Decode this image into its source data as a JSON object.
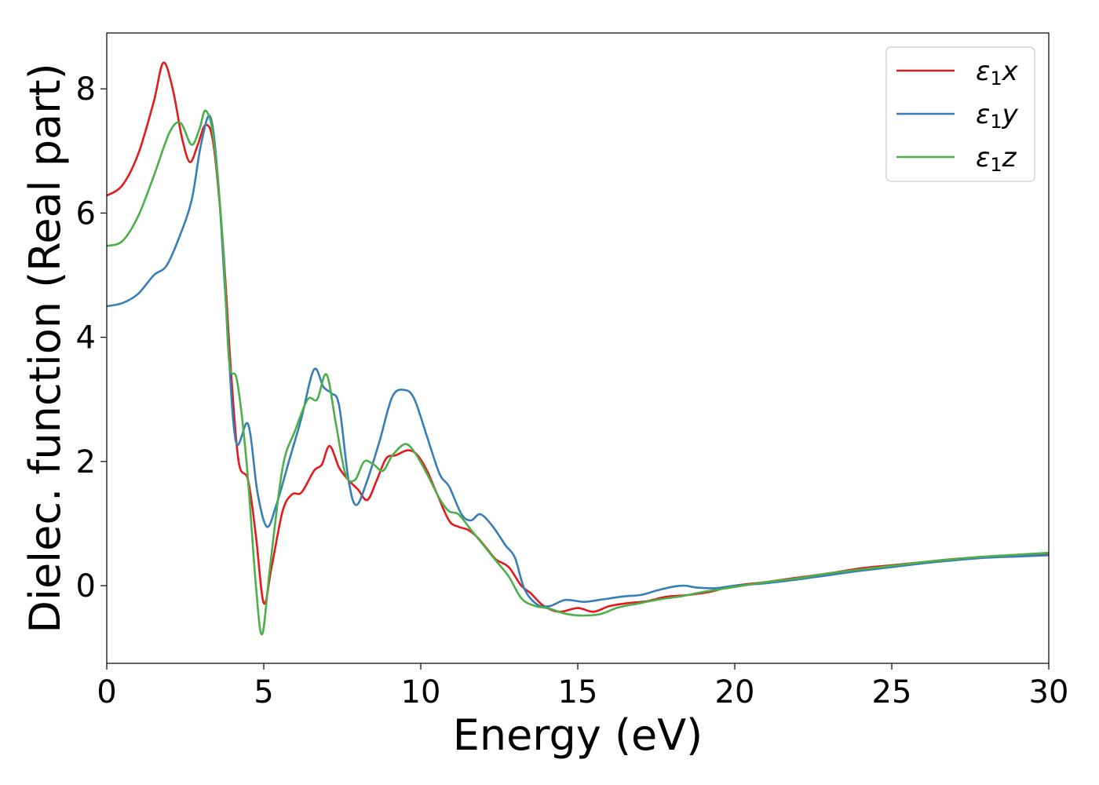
{
  "chart_data": {
    "type": "line",
    "title": "",
    "xlabel": "Energy (eV)",
    "ylabel": "Dielec. function (Real part)",
    "xlim": [
      0,
      30
    ],
    "ylim": [
      -1.25,
      8.9
    ],
    "xticks": [
      0,
      5,
      10,
      15,
      20,
      25,
      30
    ],
    "yticks": [
      0,
      2,
      4,
      6,
      8
    ],
    "grid": false,
    "legend_position": "top-right",
    "series": [
      {
        "name": "ε1x",
        "symbol": "ε",
        "sub": "1",
        "var": "x",
        "color": "#e41a1c",
        "points": [
          [
            0,
            6.28
          ],
          [
            0.5,
            6.45
          ],
          [
            1.0,
            6.95
          ],
          [
            1.5,
            7.8
          ],
          [
            1.8,
            8.42
          ],
          [
            2.1,
            8.0
          ],
          [
            2.4,
            7.2
          ],
          [
            2.65,
            6.82
          ],
          [
            2.9,
            7.1
          ],
          [
            3.15,
            7.42
          ],
          [
            3.4,
            7.1
          ],
          [
            3.7,
            5.5
          ],
          [
            3.95,
            3.5
          ],
          [
            4.2,
            2.0
          ],
          [
            4.5,
            1.7
          ],
          [
            4.75,
            0.8
          ],
          [
            5.0,
            -0.28
          ],
          [
            5.25,
            0.3
          ],
          [
            5.6,
            1.2
          ],
          [
            5.9,
            1.47
          ],
          [
            6.2,
            1.5
          ],
          [
            6.6,
            1.85
          ],
          [
            6.85,
            1.95
          ],
          [
            7.1,
            2.25
          ],
          [
            7.4,
            1.9
          ],
          [
            7.7,
            1.7
          ],
          [
            8.0,
            1.55
          ],
          [
            8.3,
            1.38
          ],
          [
            8.6,
            1.7
          ],
          [
            8.9,
            2.05
          ],
          [
            9.2,
            2.1
          ],
          [
            9.6,
            2.18
          ],
          [
            9.9,
            2.1
          ],
          [
            10.2,
            1.85
          ],
          [
            10.5,
            1.5
          ],
          [
            10.9,
            1.05
          ],
          [
            11.2,
            0.95
          ],
          [
            11.5,
            0.9
          ],
          [
            11.8,
            0.78
          ],
          [
            12.1,
            0.6
          ],
          [
            12.4,
            0.42
          ],
          [
            12.8,
            0.3
          ],
          [
            13.2,
            0.0
          ],
          [
            13.5,
            -0.12
          ],
          [
            13.9,
            -0.32
          ],
          [
            14.4,
            -0.42
          ],
          [
            15.0,
            -0.36
          ],
          [
            15.5,
            -0.42
          ],
          [
            16.0,
            -0.33
          ],
          [
            16.6,
            -0.28
          ],
          [
            17.2,
            -0.25
          ],
          [
            17.8,
            -0.18
          ],
          [
            18.5,
            -0.15
          ],
          [
            19.2,
            -0.1
          ],
          [
            20.0,
            0.0
          ],
          [
            21.0,
            0.06
          ],
          [
            22.0,
            0.13
          ],
          [
            23.0,
            0.2
          ],
          [
            24.0,
            0.28
          ],
          [
            25.0,
            0.33
          ],
          [
            26.0,
            0.38
          ],
          [
            27.0,
            0.43
          ],
          [
            28.0,
            0.46
          ],
          [
            29.0,
            0.49
          ],
          [
            30.0,
            0.51
          ]
        ]
      },
      {
        "name": "ε1y",
        "symbol": "ε",
        "sub": "1",
        "var": "y",
        "color": "#377eb8",
        "points": [
          [
            0,
            4.5
          ],
          [
            0.5,
            4.55
          ],
          [
            1.0,
            4.7
          ],
          [
            1.5,
            5.0
          ],
          [
            1.9,
            5.15
          ],
          [
            2.3,
            5.6
          ],
          [
            2.7,
            6.2
          ],
          [
            3.0,
            7.1
          ],
          [
            3.3,
            7.55
          ],
          [
            3.55,
            6.5
          ],
          [
            3.8,
            4.5
          ],
          [
            4.1,
            2.35
          ],
          [
            4.5,
            2.6
          ],
          [
            4.8,
            1.5
          ],
          [
            5.1,
            0.95
          ],
          [
            5.4,
            1.3
          ],
          [
            5.8,
            2.0
          ],
          [
            6.2,
            2.7
          ],
          [
            6.6,
            3.48
          ],
          [
            6.9,
            3.2
          ],
          [
            7.15,
            3.1
          ],
          [
            7.4,
            2.9
          ],
          [
            7.7,
            1.7
          ],
          [
            7.95,
            1.3
          ],
          [
            8.3,
            1.7
          ],
          [
            8.7,
            2.35
          ],
          [
            9.1,
            3.05
          ],
          [
            9.5,
            3.15
          ],
          [
            9.8,
            3.0
          ],
          [
            10.2,
            2.4
          ],
          [
            10.6,
            1.8
          ],
          [
            10.9,
            1.6
          ],
          [
            11.3,
            1.15
          ],
          [
            11.6,
            1.05
          ],
          [
            11.9,
            1.15
          ],
          [
            12.3,
            0.95
          ],
          [
            12.7,
            0.65
          ],
          [
            13.0,
            0.45
          ],
          [
            13.3,
            -0.05
          ],
          [
            13.7,
            -0.3
          ],
          [
            14.1,
            -0.33
          ],
          [
            14.6,
            -0.23
          ],
          [
            15.2,
            -0.26
          ],
          [
            15.8,
            -0.22
          ],
          [
            16.5,
            -0.17
          ],
          [
            17.0,
            -0.15
          ],
          [
            17.5,
            -0.08
          ],
          [
            18.0,
            -0.02
          ],
          [
            18.4,
            0.0
          ],
          [
            18.8,
            -0.03
          ],
          [
            19.4,
            -0.04
          ],
          [
            20.0,
            0.0
          ],
          [
            21.0,
            0.04
          ],
          [
            22.0,
            0.1
          ],
          [
            23.0,
            0.17
          ],
          [
            24.0,
            0.24
          ],
          [
            25.0,
            0.3
          ],
          [
            26.0,
            0.36
          ],
          [
            27.0,
            0.41
          ],
          [
            28.0,
            0.45
          ],
          [
            29.0,
            0.47
          ],
          [
            30.0,
            0.49
          ]
        ]
      },
      {
        "name": "ε1z",
        "symbol": "ε",
        "sub": "1",
        "var": "z",
        "color": "#4daf4a",
        "points": [
          [
            0,
            5.47
          ],
          [
            0.5,
            5.55
          ],
          [
            1.0,
            5.95
          ],
          [
            1.5,
            6.6
          ],
          [
            2.0,
            7.3
          ],
          [
            2.35,
            7.45
          ],
          [
            2.7,
            7.1
          ],
          [
            2.95,
            7.35
          ],
          [
            3.15,
            7.65
          ],
          [
            3.4,
            7.2
          ],
          [
            3.7,
            5.5
          ],
          [
            3.9,
            3.6
          ],
          [
            4.15,
            3.3
          ],
          [
            4.45,
            2.0
          ],
          [
            4.75,
            0.0
          ],
          [
            4.95,
            -0.78
          ],
          [
            5.2,
            0.3
          ],
          [
            5.6,
            1.9
          ],
          [
            6.0,
            2.5
          ],
          [
            6.4,
            3.0
          ],
          [
            6.7,
            3.0
          ],
          [
            7.0,
            3.4
          ],
          [
            7.3,
            2.6
          ],
          [
            7.6,
            1.8
          ],
          [
            7.9,
            1.7
          ],
          [
            8.2,
            2.0
          ],
          [
            8.5,
            1.95
          ],
          [
            8.8,
            1.85
          ],
          [
            9.1,
            2.1
          ],
          [
            9.5,
            2.28
          ],
          [
            9.8,
            2.15
          ],
          [
            10.2,
            1.8
          ],
          [
            10.6,
            1.4
          ],
          [
            10.9,
            1.2
          ],
          [
            11.2,
            1.15
          ],
          [
            11.6,
            0.9
          ],
          [
            12.0,
            0.65
          ],
          [
            12.4,
            0.4
          ],
          [
            12.8,
            0.15
          ],
          [
            13.2,
            -0.2
          ],
          [
            13.6,
            -0.32
          ],
          [
            14.1,
            -0.37
          ],
          [
            14.6,
            -0.45
          ],
          [
            15.1,
            -0.48
          ],
          [
            15.7,
            -0.46
          ],
          [
            16.3,
            -0.35
          ],
          [
            17.0,
            -0.28
          ],
          [
            17.6,
            -0.22
          ],
          [
            18.3,
            -0.17
          ],
          [
            19.0,
            -0.1
          ],
          [
            20.0,
            -0.02
          ],
          [
            21.0,
            0.06
          ],
          [
            22.0,
            0.12
          ],
          [
            23.0,
            0.2
          ],
          [
            24.0,
            0.26
          ],
          [
            25.0,
            0.32
          ],
          [
            26.0,
            0.38
          ],
          [
            27.0,
            0.43
          ],
          [
            28.0,
            0.47
          ],
          [
            29.0,
            0.5
          ],
          [
            30.0,
            0.53
          ]
        ]
      }
    ]
  }
}
